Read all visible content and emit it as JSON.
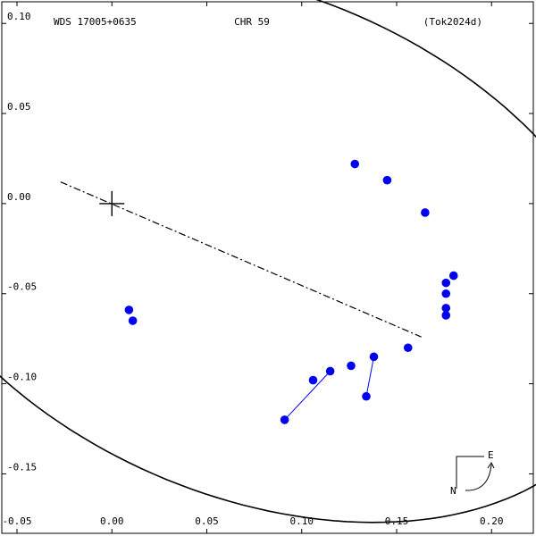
{
  "header": {
    "left": "WDS 17005+0635",
    "center": "CHR  59",
    "right": "(Tok2024d)"
  },
  "compass": {
    "east": "E",
    "north": "N"
  },
  "chart_data": {
    "type": "scatter",
    "title": "",
    "xlabel": "",
    "ylabel": "",
    "xlim": [
      -0.058,
      0.222
    ],
    "ylim": [
      -0.183,
      0.112
    ],
    "y_axis": "inverted",
    "x_ticks": [
      "-0.05",
      "0.00",
      "0.05",
      "0.10",
      "0.15",
      "0.20"
    ],
    "x_tick_values": [
      -0.05,
      0.0,
      0.05,
      0.1,
      0.15,
      0.2
    ],
    "y_ticks": [
      "0.10",
      "0.05",
      "0.00",
      "-0.05",
      "-0.10",
      "-0.15"
    ],
    "y_tick_values": [
      0.1,
      0.05,
      0.0,
      -0.05,
      -0.1,
      -0.15
    ],
    "primary_star": [
      0.0,
      0.0
    ],
    "orbit_center": [
      0.076,
      -0.023
    ],
    "orbit_semi_axes": [
      0.208,
      0.138
    ],
    "orbit_rotation_deg": 26,
    "line_of_nodes": [
      [
        -0.027,
        0.012
      ],
      [
        0.163,
        -0.074
      ]
    ],
    "observations": [
      {
        "x": 0.128,
        "y": 0.022
      },
      {
        "x": 0.145,
        "y": 0.013
      },
      {
        "x": 0.165,
        "y": -0.005
      },
      {
        "x": 0.18,
        "y": -0.04
      },
      {
        "x": 0.176,
        "y": -0.044
      },
      {
        "x": 0.176,
        "y": -0.05
      },
      {
        "x": 0.176,
        "y": -0.058
      },
      {
        "x": 0.176,
        "y": -0.062
      },
      {
        "x": 0.156,
        "y": -0.08
      },
      {
        "x": 0.138,
        "y": -0.085
      },
      {
        "x": 0.126,
        "y": -0.09
      },
      {
        "x": 0.115,
        "y": -0.093
      },
      {
        "x": 0.106,
        "y": -0.098
      },
      {
        "x": 0.009,
        "y": -0.059
      },
      {
        "x": 0.011,
        "y": -0.065
      },
      {
        "x": 0.134,
        "y": -0.107
      },
      {
        "x": 0.091,
        "y": -0.12
      }
    ],
    "residual_segments": [
      {
        "from": [
          0.091,
          -0.12
        ],
        "to": [
          0.115,
          -0.093
        ]
      },
      {
        "from": [
          0.134,
          -0.107
        ],
        "to": [
          0.138,
          -0.085
        ]
      }
    ],
    "colors": {
      "points": "#0000ee",
      "residual_lines": "#0000ee",
      "orbit": "#000000",
      "frame": "#000000"
    }
  }
}
